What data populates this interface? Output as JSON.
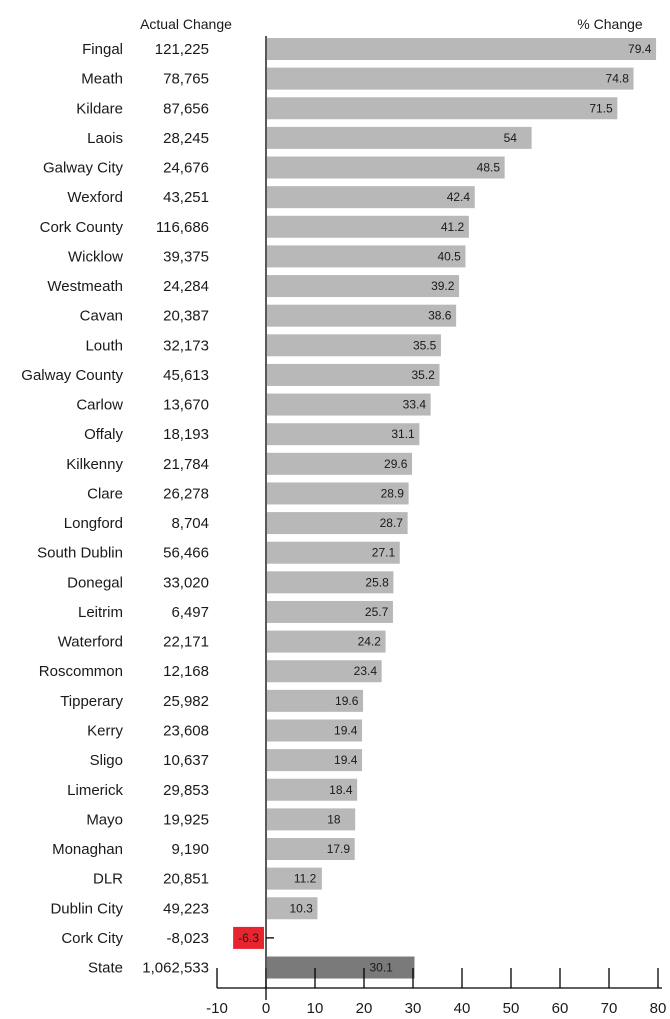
{
  "chart_data": {
    "type": "bar",
    "orientation": "horizontal",
    "headers": {
      "actual": "Actual Change",
      "percent": "% Change"
    },
    "categories": [
      "Fingal",
      "Meath",
      "Kildare",
      "Laois",
      "Galway City",
      "Wexford",
      "Cork County",
      "Wicklow",
      "Westmeath",
      "Cavan",
      "Louth",
      "Galway County",
      "Carlow",
      "Offaly",
      "Kilkenny",
      "Clare",
      "Longford",
      "South Dublin",
      "Donegal",
      "Leitrim",
      "Waterford",
      "Roscommon",
      "Tipperary",
      "Kerry",
      "Sligo",
      "Limerick",
      "Mayo",
      "Monaghan",
      "DLR",
      "Dublin City",
      "Cork City",
      "State"
    ],
    "actual_change": [
      "121,225",
      "78,765",
      "87,656",
      "28,245",
      "24,676",
      "43,251",
      "116,686",
      "39,375",
      "24,284",
      "20,387",
      "32,173",
      "45,613",
      "13,670",
      "18,193",
      "21,784",
      "26,278",
      "8,704",
      "56,466",
      "33,020",
      "6,497",
      "22,171",
      "12,168",
      "25,982",
      "23,608",
      "10,637",
      "29,853",
      "19,925",
      "9,190",
      "20,851",
      "49,223",
      "-8,023",
      "1,062,533"
    ],
    "values": [
      79.4,
      74.8,
      71.5,
      54,
      48.5,
      42.4,
      41.2,
      40.5,
      39.2,
      38.6,
      35.5,
      35.2,
      33.4,
      31.1,
      29.6,
      28.9,
      28.7,
      27.1,
      25.8,
      25.7,
      24.2,
      23.4,
      19.6,
      19.4,
      19.4,
      18.4,
      18,
      17.9,
      11.2,
      10.3,
      -6.3,
      30.1
    ],
    "xlim": [
      -10,
      80
    ],
    "xticks": [
      -10,
      0,
      10,
      20,
      30,
      40,
      50,
      60,
      70,
      80
    ],
    "colors": {
      "bar": "#b8b8b8",
      "negative": "#e8242f",
      "state": "#7a7a7a"
    },
    "grid": false
  }
}
